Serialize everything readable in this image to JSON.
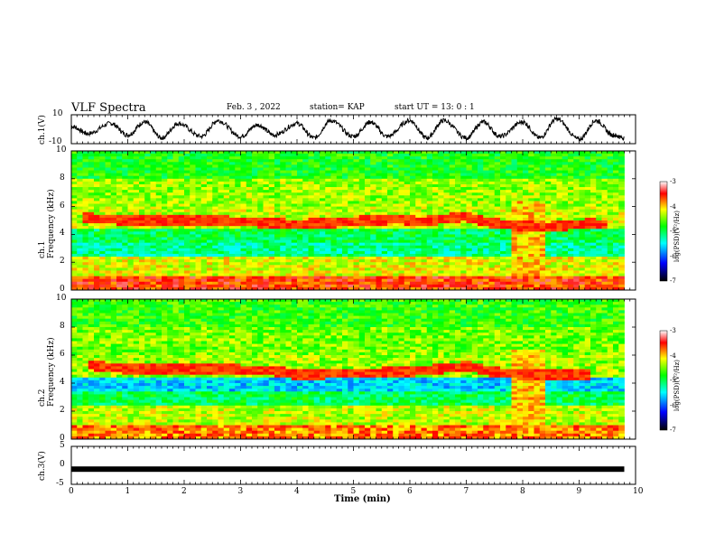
{
  "header": {
    "title": "VLF Spectra",
    "date": "Feb. 3 , 2022",
    "station": "station= KAP",
    "start_ut": "start UT = 13: 0 : 1"
  },
  "colors": {
    "background": "#ffffff",
    "axes": "#000000",
    "colormap": [
      "#000000",
      "#0000ff",
      "#00ffff",
      "#00ff00",
      "#ffff00",
      "#ff0000",
      "#ffffff"
    ]
  },
  "chart_data": [
    {
      "id": "ch1-waveform",
      "type": "line",
      "ylabel": "ch.1(V)",
      "ylim": [
        -10,
        10
      ],
      "ytick_labels": [
        "10",
        "-10"
      ],
      "xlim": [
        0,
        10
      ],
      "x": [
        0.0,
        0.3,
        0.7,
        1.0,
        1.3,
        1.6,
        1.9,
        2.3,
        2.6,
        3.0,
        3.3,
        3.6,
        4.0,
        4.3,
        4.6,
        5.0,
        5.3,
        5.6,
        6.0,
        6.3,
        6.6,
        7.0,
        7.3,
        7.6,
        8.0,
        8.3,
        8.6,
        9.0,
        9.3,
        9.6,
        9.8
      ],
      "values": [
        2,
        -3,
        4,
        -4,
        5,
        -6,
        4,
        -5,
        6,
        -5,
        3,
        -4,
        4,
        -6,
        6,
        -5,
        5,
        -5,
        6,
        -6,
        6,
        -6,
        5,
        -5,
        5,
        -6,
        7,
        -7,
        6,
        -4,
        -6
      ]
    },
    {
      "id": "ch1-spectrogram",
      "type": "heatmap",
      "ylabel": "ch.1\nFrequency (kHz)",
      "ylim": [
        0,
        10
      ],
      "ytick_labels": [
        "0",
        "2",
        "4",
        "6",
        "8",
        "10"
      ],
      "xlim": [
        0,
        10
      ],
      "data_end_min": 9.8,
      "colorbar": {
        "label": "log(PSD)(V²/Hz)",
        "range": [
          -7,
          -3
        ],
        "tick_labels": [
          "-3",
          "-4",
          "-5",
          "-6",
          "-7"
        ]
      },
      "base_level_by_khz": {
        "0-1": -3.6,
        "1-2.5": -4.2,
        "2.5-3.5": -5.2,
        "3.5-4.5": -5.0,
        "4.5-6": -4.3,
        "6-8": -4.4,
        "8-10": -4.8
      },
      "emission_trace_khz": {
        "x": [
          0.2,
          0.6,
          1.0,
          2.6,
          3.5,
          4.0,
          5.8,
          6.2,
          7.0,
          7.3,
          8.0,
          8.4,
          9.2,
          9.5
        ],
        "y": [
          5.2,
          5.1,
          5.0,
          5.0,
          4.8,
          4.7,
          5.1,
          4.9,
          5.3,
          4.9,
          4.6,
          4.5,
          4.8,
          4.7
        ]
      },
      "burst_interval_min": [
        7.8,
        8.45
      ]
    },
    {
      "id": "ch2-spectrogram",
      "type": "heatmap",
      "ylabel": "ch.2\nFrequency (kHz)",
      "ylim": [
        0,
        10
      ],
      "ytick_labels": [
        "0",
        "2",
        "4",
        "6",
        "8",
        "10"
      ],
      "xlim": [
        0,
        10
      ],
      "data_end_min": 9.8,
      "colorbar": {
        "label": "log(PSD)(V²/Hz)",
        "range": [
          -7,
          -3
        ],
        "tick_labels": [
          "-3",
          "-4",
          "-5",
          "-6",
          "-7"
        ]
      },
      "base_level_by_khz": {
        "0-1": -3.8,
        "1-2.5": -4.3,
        "2.5-3.5": -5.0,
        "3.5-4.5": -5.6,
        "4.5-6": -4.4,
        "6-8": -4.5,
        "8-10": -4.7
      },
      "emission_trace_khz": {
        "x": [
          0.3,
          1.0,
          2.5,
          3.5,
          4.0,
          6.0,
          7.0,
          7.5,
          8.0,
          8.5,
          9.2
        ],
        "y": [
          5.3,
          5.0,
          5.0,
          4.9,
          4.6,
          4.8,
          5.2,
          4.8,
          4.6,
          4.6,
          4.6
        ]
      },
      "burst_interval_min": [
        7.8,
        8.45
      ]
    },
    {
      "id": "ch3-signal",
      "type": "line",
      "ylabel": "ch.3(V)",
      "ylim": [
        -5,
        5
      ],
      "ytick_labels": [
        "5",
        "0",
        "-5"
      ],
      "xlim": [
        0,
        10
      ],
      "x": [
        0,
        9.8
      ],
      "values": [
        -1,
        -1
      ],
      "xlabel": "Time (min)",
      "xtick_labels": [
        "0",
        "1",
        "2",
        "3",
        "4",
        "5",
        "6",
        "7",
        "8",
        "9",
        "10"
      ]
    }
  ]
}
